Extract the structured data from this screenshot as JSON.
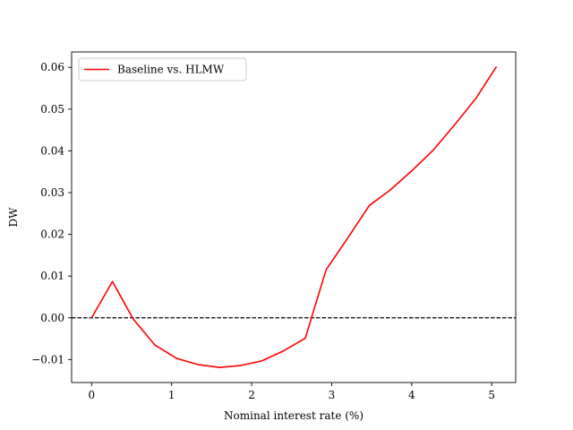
{
  "chart_data": {
    "type": "line",
    "title": "",
    "xlabel": "Nominal interest rate (%)",
    "ylabel": "DW",
    "xlim": [
      -0.25,
      5.3
    ],
    "ylim": [
      -0.0155,
      0.0637
    ],
    "grid": false,
    "legend_position": "top-left",
    "x_ticks": [
      0,
      1,
      2,
      3,
      4,
      5
    ],
    "x_tick_labels": [
      "0",
      "1",
      "2",
      "3",
      "4",
      "5"
    ],
    "y_ticks": [
      -0.01,
      0.0,
      0.01,
      0.02,
      0.03,
      0.04,
      0.05,
      0.06
    ],
    "y_tick_labels": [
      "−0.01",
      "0.00",
      "0.01",
      "0.02",
      "0.03",
      "0.04",
      "0.05",
      "0.06"
    ],
    "reference_line": {
      "y": 0,
      "style": "dashed",
      "color": "#000000"
    },
    "series": [
      {
        "name": "Baseline vs. HLMW",
        "color": "#ff0000",
        "x": [
          0.0,
          0.26,
          0.52,
          0.79,
          1.06,
          1.33,
          1.6,
          1.87,
          2.13,
          2.4,
          2.67,
          2.93,
          3.2,
          3.47,
          3.73,
          4.0,
          4.27,
          4.53,
          4.8,
          5.06
        ],
        "y": [
          0.0,
          0.0087,
          -0.0003,
          -0.0065,
          -0.0097,
          -0.0112,
          -0.0119,
          -0.0114,
          -0.0103,
          -0.0079,
          -0.0049,
          0.0115,
          0.0191,
          0.0269,
          0.0306,
          0.0352,
          0.0402,
          0.0461,
          0.0525,
          0.0602
        ]
      }
    ]
  }
}
